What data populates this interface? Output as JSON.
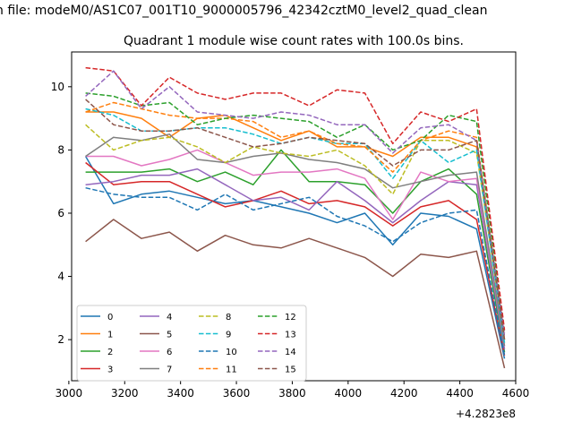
{
  "chart_data": {
    "type": "line",
    "suptitle": "n file: modeM0/AS1C07_001T10_9000005796_42342cztM0_level2_quad_clean",
    "title": "Quadrant 1 module wise count rates with 100.0s bins.",
    "xlabel": "",
    "ylabel": "",
    "x_offset_label": "+4.2823e8",
    "xlim": [
      3010,
      4600
    ],
    "ylim": [
      0.7,
      11.1
    ],
    "x_ticks": [
      3000,
      3200,
      3400,
      3600,
      3800,
      4000,
      4200,
      4400,
      4600
    ],
    "y_ticks": [
      2,
      4,
      6,
      8,
      10
    ],
    "x": [
      3060,
      3160,
      3260,
      3360,
      3460,
      3560,
      3660,
      3760,
      3860,
      3960,
      4060,
      4160,
      4260,
      4360,
      4460,
      4560
    ],
    "legend_location": "lower-left",
    "series": [
      {
        "name": "0",
        "color": "#1f77b4",
        "dash": "solid",
        "values": [
          7.8,
          6.3,
          6.6,
          6.7,
          6.5,
          6.3,
          6.4,
          6.2,
          6.0,
          5.7,
          6.0,
          5.0,
          6.0,
          5.9,
          5.5,
          1.4
        ]
      },
      {
        "name": "1",
        "color": "#ff7f0e",
        "dash": "solid",
        "values": [
          9.2,
          9.2,
          9.0,
          8.4,
          9.0,
          9.1,
          8.7,
          8.3,
          8.6,
          8.1,
          8.1,
          7.8,
          8.4,
          8.4,
          8.1,
          2.0
        ]
      },
      {
        "name": "2",
        "color": "#2ca02c",
        "dash": "solid",
        "values": [
          7.3,
          7.3,
          7.3,
          7.4,
          7.0,
          7.3,
          6.9,
          8.0,
          7.0,
          7.0,
          6.9,
          6.0,
          7.0,
          7.4,
          6.6,
          1.6
        ]
      },
      {
        "name": "3",
        "color": "#d62728",
        "dash": "solid",
        "values": [
          7.6,
          6.9,
          7.0,
          7.0,
          6.6,
          6.2,
          6.4,
          6.7,
          6.3,
          6.4,
          6.2,
          5.6,
          6.2,
          6.4,
          5.8,
          1.5
        ]
      },
      {
        "name": "4",
        "color": "#9467bd",
        "dash": "solid",
        "values": [
          6.9,
          7.0,
          7.2,
          7.2,
          7.4,
          6.9,
          6.4,
          6.5,
          6.1,
          7.0,
          6.4,
          5.7,
          6.4,
          7.0,
          6.9,
          1.7
        ]
      },
      {
        "name": "5",
        "color": "#8c564b",
        "dash": "solid",
        "values": [
          5.1,
          5.8,
          5.2,
          5.4,
          4.8,
          5.3,
          5.0,
          4.9,
          5.2,
          4.9,
          4.6,
          4.0,
          4.7,
          4.6,
          4.8,
          1.1
        ]
      },
      {
        "name": "6",
        "color": "#e377c2",
        "dash": "solid",
        "values": [
          7.8,
          7.8,
          7.5,
          7.7,
          8.0,
          7.6,
          7.2,
          7.3,
          7.3,
          7.4,
          7.1,
          5.8,
          7.3,
          7.0,
          7.1,
          1.8
        ]
      },
      {
        "name": "7",
        "color": "#7f7f7f",
        "dash": "solid",
        "values": [
          7.8,
          8.4,
          8.3,
          8.5,
          7.7,
          7.6,
          7.8,
          7.9,
          7.7,
          7.6,
          7.4,
          6.8,
          7.0,
          7.2,
          7.3,
          1.8
        ]
      },
      {
        "name": "8",
        "color": "#bcbd22",
        "dash": "dashed",
        "values": [
          8.8,
          8.0,
          8.3,
          8.4,
          8.1,
          7.6,
          8.1,
          7.9,
          7.8,
          8.0,
          7.5,
          6.6,
          8.3,
          8.3,
          7.9,
          2.0
        ]
      },
      {
        "name": "9",
        "color": "#17becf",
        "dash": "dashed",
        "values": [
          9.3,
          9.1,
          8.6,
          8.6,
          8.7,
          8.7,
          8.5,
          8.2,
          8.4,
          8.2,
          8.2,
          7.1,
          8.3,
          7.6,
          8.0,
          1.9
        ]
      },
      {
        "name": "10",
        "color": "#1f77b4",
        "dash": "dashed",
        "values": [
          6.8,
          6.6,
          6.5,
          6.5,
          6.1,
          6.6,
          6.1,
          6.3,
          6.5,
          5.9,
          5.6,
          5.1,
          5.7,
          6.0,
          6.1,
          1.5
        ]
      },
      {
        "name": "11",
        "color": "#ff7f0e",
        "dash": "dashed",
        "values": [
          9.2,
          9.5,
          9.3,
          9.1,
          9.0,
          9.0,
          8.9,
          8.4,
          8.6,
          8.2,
          8.1,
          7.3,
          8.3,
          8.6,
          8.4,
          2.1
        ]
      },
      {
        "name": "12",
        "color": "#2ca02c",
        "dash": "dashed",
        "values": [
          9.8,
          9.7,
          9.4,
          9.5,
          8.8,
          9.0,
          9.1,
          9.0,
          8.9,
          8.4,
          8.8,
          8.0,
          8.3,
          9.1,
          8.9,
          2.2
        ]
      },
      {
        "name": "13",
        "color": "#d62728",
        "dash": "dashed",
        "values": [
          10.6,
          10.5,
          9.4,
          10.3,
          9.8,
          9.6,
          9.8,
          9.8,
          9.4,
          9.9,
          9.8,
          8.2,
          9.2,
          8.9,
          9.3,
          2.3
        ]
      },
      {
        "name": "14",
        "color": "#9467bd",
        "dash": "dashed",
        "values": [
          9.7,
          10.5,
          9.3,
          10.0,
          9.2,
          9.1,
          9.0,
          9.2,
          9.1,
          8.8,
          8.8,
          7.9,
          8.7,
          8.8,
          8.3,
          2.1
        ]
      },
      {
        "name": "15",
        "color": "#8c564b",
        "dash": "dashed",
        "values": [
          9.6,
          8.8,
          8.6,
          8.6,
          8.7,
          8.4,
          8.1,
          8.2,
          8.4,
          8.3,
          8.2,
          7.5,
          8.0,
          8.0,
          8.3,
          2.0
        ]
      }
    ]
  }
}
